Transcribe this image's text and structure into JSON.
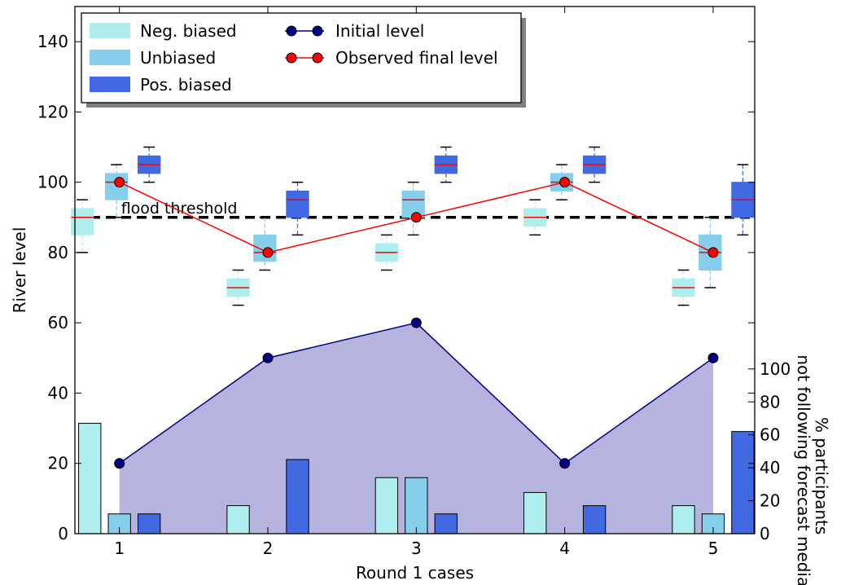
{
  "chart_data": {
    "type": "bar",
    "x": [
      1,
      2,
      3,
      4,
      5
    ],
    "xlabel": "Round 1 cases",
    "ylabel": "River level",
    "ylabel_right": "% participants not following forecast median",
    "xlim": [
      0.7,
      5.28
    ],
    "ylim": [
      0,
      150
    ],
    "yticks": [
      0,
      20,
      40,
      60,
      80,
      100,
      120,
      140
    ],
    "ylim_right": [
      0,
      320
    ],
    "yticks_right": [
      0,
      20,
      40,
      60,
      80,
      100
    ],
    "grid": false,
    "legend_position": "top-left",
    "flood_threshold": {
      "value": 90,
      "label": "flood threshold"
    },
    "legend": {
      "neg": "Neg. biased",
      "unb": "Unbiased",
      "pos": "Pos. biased",
      "initial": "Initial level",
      "observed": "Observed final level"
    },
    "colors": {
      "neg": "#afeeee",
      "unb": "#87ceeb",
      "pos": "#4169e1",
      "initial": "#000080",
      "observed": "#ff0000",
      "area": "#8c8ccd",
      "median": "#ff0000"
    },
    "lines": {
      "initial_level": [
        20,
        50,
        60,
        20,
        50
      ],
      "observed_final_level": [
        100,
        80,
        90,
        100,
        80
      ]
    },
    "boxplots": [
      {
        "series": "neg",
        "x": 0.75,
        "q1": 85,
        "median": 90,
        "q3": 92.5,
        "whislo": 80,
        "whishi": 95
      },
      {
        "series": "unb",
        "x": 0.98,
        "q1": 95,
        "median": 100,
        "q3": 102.5,
        "whislo": 90,
        "whishi": 105
      },
      {
        "series": "pos",
        "x": 1.2,
        "q1": 102.5,
        "median": 105,
        "q3": 107.5,
        "whislo": 100,
        "whishi": 110
      },
      {
        "series": "neg",
        "x": 1.8,
        "q1": 67.5,
        "median": 70,
        "q3": 72.5,
        "whislo": 65,
        "whishi": 75
      },
      {
        "series": "unb",
        "x": 1.98,
        "q1": 77.5,
        "median": 80,
        "q3": 85,
        "whislo": 75,
        "whishi": 90
      },
      {
        "series": "pos",
        "x": 2.2,
        "q1": 90,
        "median": 95,
        "q3": 97.5,
        "whislo": 85,
        "whishi": 100
      },
      {
        "series": "neg",
        "x": 2.8,
        "q1": 77.5,
        "median": 80,
        "q3": 82.5,
        "whislo": 75,
        "whishi": 85
      },
      {
        "series": "unb",
        "x": 2.98,
        "q1": 90,
        "median": 95,
        "q3": 97.5,
        "whislo": 85,
        "whishi": 100
      },
      {
        "series": "pos",
        "x": 3.2,
        "q1": 102.5,
        "median": 105,
        "q3": 107.5,
        "whislo": 100,
        "whishi": 110
      },
      {
        "series": "neg",
        "x": 3.8,
        "q1": 87.5,
        "median": 90,
        "q3": 92.5,
        "whislo": 85,
        "whishi": 95
      },
      {
        "series": "unb",
        "x": 3.98,
        "q1": 97.5,
        "median": 100,
        "q3": 102.5,
        "whislo": 95,
        "whishi": 105
      },
      {
        "series": "pos",
        "x": 4.2,
        "q1": 102.5,
        "median": 105,
        "q3": 107.5,
        "whislo": 100,
        "whishi": 110
      },
      {
        "series": "neg",
        "x": 4.8,
        "q1": 67.5,
        "median": 70,
        "q3": 72.5,
        "whislo": 65,
        "whishi": 75
      },
      {
        "series": "unb",
        "x": 4.98,
        "q1": 75,
        "median": 80,
        "q3": 85,
        "whislo": 70,
        "whishi": 90
      },
      {
        "series": "pos",
        "x": 5.2,
        "q1": 90,
        "median": 95,
        "q3": 100,
        "whislo": 85,
        "whishi": 105
      }
    ],
    "bars": [
      {
        "series": "neg",
        "x": 0.8,
        "value": 67
      },
      {
        "series": "unb",
        "x": 1.0,
        "value": 12
      },
      {
        "series": "pos",
        "x": 1.2,
        "value": 12
      },
      {
        "series": "neg",
        "x": 1.8,
        "value": 17
      },
      {
        "series": "unb",
        "x": 2.0,
        "value": 0
      },
      {
        "series": "pos",
        "x": 2.2,
        "value": 45
      },
      {
        "series": "neg",
        "x": 2.8,
        "value": 34
      },
      {
        "series": "unb",
        "x": 3.0,
        "value": 34
      },
      {
        "series": "pos",
        "x": 3.2,
        "value": 12
      },
      {
        "series": "neg",
        "x": 3.8,
        "value": 25
      },
      {
        "series": "unb",
        "x": 4.0,
        "value": 0
      },
      {
        "series": "pos",
        "x": 4.2,
        "value": 17
      },
      {
        "series": "neg",
        "x": 4.8,
        "value": 17
      },
      {
        "series": "unb",
        "x": 5.0,
        "value": 12
      },
      {
        "series": "pos",
        "x": 5.2,
        "value": 62
      }
    ]
  }
}
